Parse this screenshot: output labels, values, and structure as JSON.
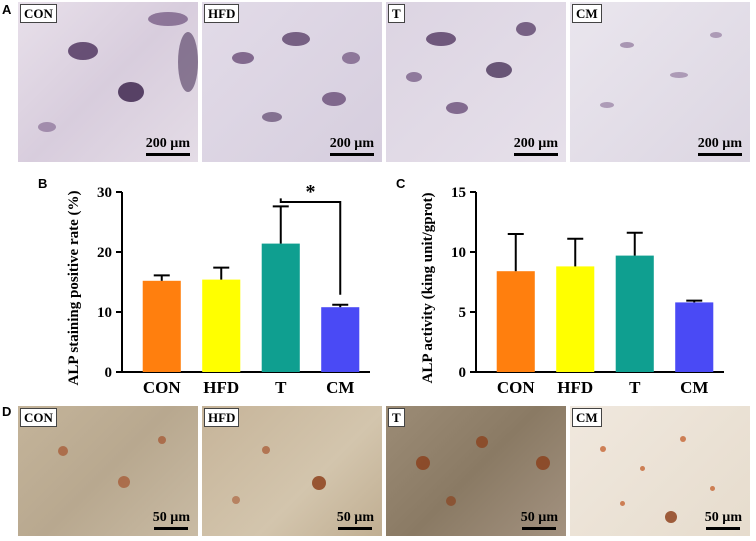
{
  "panel_letters": {
    "a": "A",
    "b": "B",
    "c": "C",
    "d": "D"
  },
  "row_a": [
    {
      "label": "CON",
      "scale": "200 µm"
    },
    {
      "label": "HFD",
      "scale": "200 µm"
    },
    {
      "label": "T",
      "scale": "200 µm"
    },
    {
      "label": "CM",
      "scale": "200 µm"
    }
  ],
  "row_d": [
    {
      "label": "CON",
      "scale": "50 µm"
    },
    {
      "label": "HFD",
      "scale": "50 µm"
    },
    {
      "label": "T",
      "scale": "50 µm"
    },
    {
      "label": "CM",
      "scale": "50 µm"
    }
  ],
  "colors": {
    "CON": "#ff7f0e",
    "HFD": "#ffff00",
    "T": "#0f9f90",
    "CM": "#4a4af5",
    "stain_a_bg": "#ddd6e4",
    "stain_a_blob": "#5a3a6a",
    "stain_d_bg": "#c2b29a",
    "stain_d_blob": "#a0441c"
  },
  "chart_data": [
    {
      "type": "bar",
      "categories": [
        "CON",
        "HFD",
        "T",
        "CM"
      ],
      "values": [
        15.2,
        15.4,
        21.4,
        10.8
      ],
      "errors": [
        0.9,
        2.0,
        6.2,
        0.4
      ],
      "ylabel": "ALP staining positive rate (%)",
      "ylim": [
        0,
        30
      ],
      "yticks": [
        "0",
        "10",
        "20",
        "30"
      ],
      "annotation": {
        "text": "*",
        "between": [
          "T",
          "CM"
        ]
      },
      "grid": false
    },
    {
      "type": "bar",
      "categories": [
        "CON",
        "HFD",
        "T",
        "CM"
      ],
      "values": [
        8.4,
        8.8,
        9.7,
        5.8
      ],
      "errors": [
        3.1,
        2.3,
        1.9,
        0.15
      ],
      "ylabel": "ALP activity (king unit/gprot)",
      "ylim": [
        0,
        15
      ],
      "yticks": [
        "0",
        "5",
        "10",
        "15"
      ],
      "grid": false
    }
  ]
}
